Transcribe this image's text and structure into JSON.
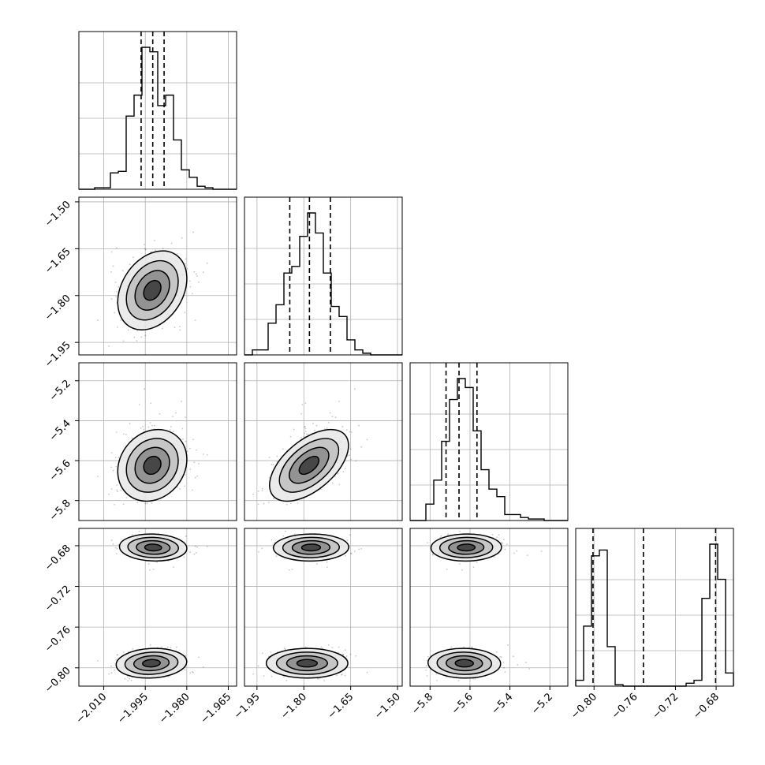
{
  "chart_data": {
    "type": "corner",
    "parameters": [
      {
        "range": [
          -2.019,
          -1.962
        ],
        "ticks": [
          {
            "value": -2.01,
            "label": "−2.010"
          },
          {
            "value": -1.995,
            "label": "−1.995"
          },
          {
            "value": -1.98,
            "label": "−1.980"
          },
          {
            "value": -1.965,
            "label": "−1.965"
          }
        ],
        "quantiles": [
          -1.9965,
          -1.9923,
          -1.9882
        ],
        "mean": -1.9923,
        "sd": 0.0062
      },
      {
        "range": [
          -1.99,
          -1.485
        ],
        "ticks": [
          {
            "value": -1.95,
            "label": "−1.95"
          },
          {
            "value": -1.8,
            "label": "−1.80"
          },
          {
            "value": -1.65,
            "label": "−1.65"
          },
          {
            "value": -1.5,
            "label": "−1.50"
          }
        ],
        "quantiles": [
          -1.845,
          -1.782,
          -1.715
        ],
        "mean": -1.782,
        "sd": 0.066
      },
      {
        "range": [
          -5.9,
          -5.11
        ],
        "ticks": [
          {
            "value": -5.8,
            "label": "−5.8"
          },
          {
            "value": -5.6,
            "label": "−5.6"
          },
          {
            "value": -5.4,
            "label": "−5.4"
          },
          {
            "value": -5.2,
            "label": "−5.2"
          }
        ],
        "quantiles": [
          -5.72,
          -5.655,
          -5.565
        ],
        "mean": -5.65,
        "sd": 0.07
      },
      {
        "range": [
          -0.818,
          -0.663
        ],
        "ticks": [
          {
            "value": -0.8,
            "label": "−0.80"
          },
          {
            "value": -0.76,
            "label": "−0.76"
          },
          {
            "value": -0.72,
            "label": "−0.72"
          },
          {
            "value": -0.68,
            "label": "−0.68"
          }
        ],
        "quantiles": [
          -0.801,
          -0.7515,
          -0.6805
        ],
        "modes": [
          -0.7955,
          -0.6815
        ],
        "mode_sd": 0.007
      }
    ],
    "bins": 20,
    "scatter_points": 500,
    "contour_levels": 4,
    "grid": true,
    "xlabel": "",
    "ylabel": "",
    "title": ""
  }
}
